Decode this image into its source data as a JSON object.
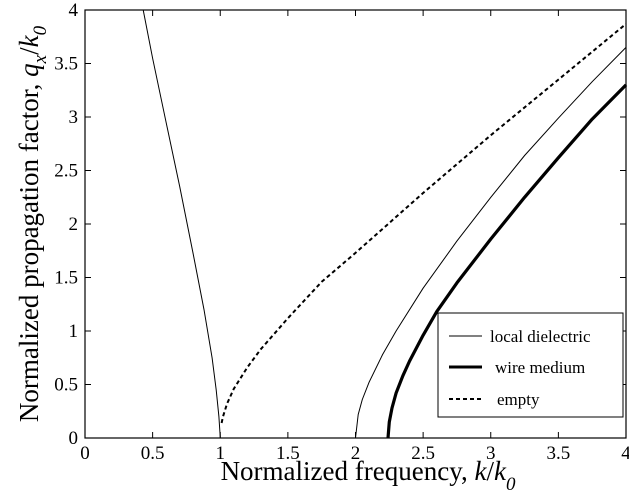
{
  "chart_data": {
    "type": "line",
    "xlabel": "Normalized frequency, k/k0",
    "ylabel": "Normalized propagation factor, qx/k0",
    "xlabel_parts": {
      "main": "Normalized frequency, ",
      "var": "k",
      "sep": "/",
      "var2": "k",
      "sub": "0"
    },
    "ylabel_parts": {
      "main": "Normalized propagation factor, ",
      "var": "q",
      "var_sub": "x",
      "sep": "/",
      "var2": "k",
      "sub": "0"
    },
    "xlim": [
      0,
      4
    ],
    "ylim": [
      0,
      4
    ],
    "xticks": [
      0,
      0.5,
      1,
      1.5,
      2,
      2.5,
      3,
      3.5,
      4
    ],
    "yticks": [
      0,
      0.5,
      1,
      1.5,
      2,
      2.5,
      3,
      3.5,
      4
    ],
    "xtick_labels": [
      "0",
      "0.5",
      "1",
      "1.5",
      "2",
      "2.5",
      "3",
      "3.5",
      "4"
    ],
    "ytick_labels": [
      "0",
      "0.5",
      "1",
      "1.5",
      "2",
      "2.5",
      "3",
      "3.5",
      "4"
    ],
    "grid": false,
    "legend_position": "bottom-right",
    "series": [
      {
        "name": "local dielectric",
        "style": "thin-solid",
        "segments": [
          {
            "x": [
              0.43,
              0.5,
              0.6,
              0.7,
              0.8,
              0.88,
              0.94,
              0.97,
              0.99,
              1.0
            ],
            "y": [
              4.0,
              3.55,
              2.95,
              2.35,
              1.72,
              1.2,
              0.75,
              0.45,
              0.2,
              0.0
            ]
          },
          {
            "x": [
              2.0,
              2.02,
              2.05,
              2.1,
              2.2,
              2.3,
              2.5,
              2.75,
              3.0,
              3.25,
              3.5,
              3.75,
              4.0
            ],
            "y": [
              0.0,
              0.22,
              0.36,
              0.52,
              0.78,
              1.0,
              1.4,
              1.84,
              2.25,
              2.64,
              2.99,
              3.33,
              3.65
            ]
          }
        ]
      },
      {
        "name": "wire medium",
        "style": "thick-solid",
        "segments": [
          {
            "x": [
              2.24,
              2.25,
              2.27,
              2.3,
              2.35,
              2.4,
              2.5,
              2.6,
              2.75,
              3.0,
              3.25,
              3.5,
              3.75,
              4.0
            ],
            "y": [
              0.0,
              0.15,
              0.28,
              0.42,
              0.58,
              0.72,
              0.96,
              1.18,
              1.45,
              1.86,
              2.25,
              2.62,
              2.98,
              3.3
            ]
          }
        ]
      },
      {
        "name": "empty",
        "style": "dashed",
        "segments": [
          {
            "x": [
              1.01,
              1.02,
              1.05,
              1.1,
              1.2,
              1.3,
              1.5,
              1.75,
              2.0,
              2.5,
              3.0,
              3.5,
              4.0
            ],
            "y": [
              0.14,
              0.2,
              0.32,
              0.46,
              0.66,
              0.83,
              1.12,
              1.46,
              1.73,
              2.29,
              2.83,
              3.35,
              3.87
            ]
          }
        ]
      }
    ]
  }
}
